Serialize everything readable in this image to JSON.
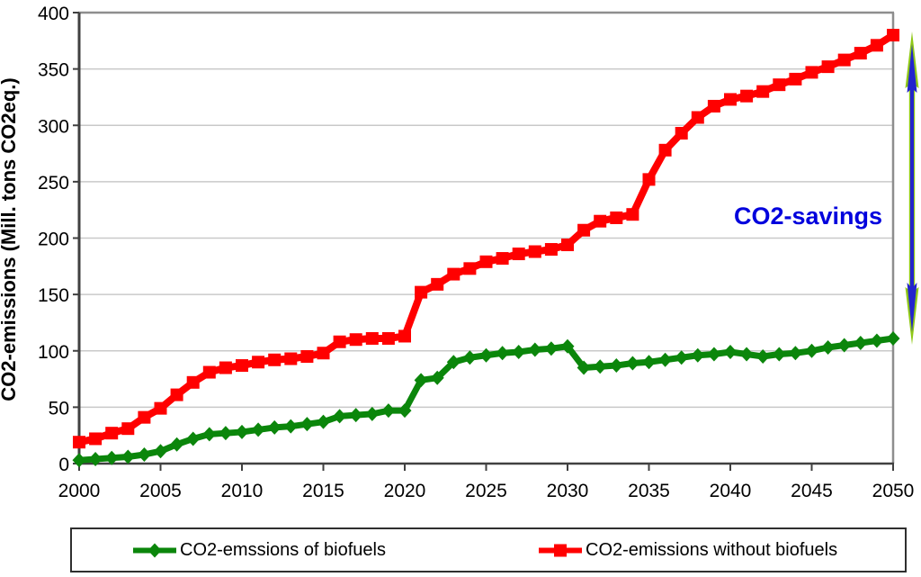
{
  "chart_data": {
    "type": "line",
    "title": "",
    "xlabel": "",
    "ylabel": "CO2-emissions (Mill. tons CO2eq.)",
    "xlim": [
      2000,
      2050
    ],
    "ylim": [
      0,
      400
    ],
    "x_ticks": [
      2000,
      2005,
      2010,
      2015,
      2020,
      2025,
      2030,
      2035,
      2040,
      2045,
      2050
    ],
    "y_ticks": [
      0,
      50,
      100,
      150,
      200,
      250,
      300,
      350,
      400
    ],
    "grid": "horizontal",
    "legend_position": "bottom",
    "x": [
      2000,
      2001,
      2002,
      2003,
      2004,
      2005,
      2006,
      2007,
      2008,
      2009,
      2010,
      2011,
      2012,
      2013,
      2014,
      2015,
      2016,
      2017,
      2018,
      2019,
      2020,
      2021,
      2022,
      2023,
      2024,
      2025,
      2026,
      2027,
      2028,
      2029,
      2030,
      2031,
      2032,
      2033,
      2034,
      2035,
      2036,
      2037,
      2038,
      2039,
      2040,
      2041,
      2042,
      2043,
      2044,
      2045,
      2046,
      2047,
      2048,
      2049,
      2050
    ],
    "series": [
      {
        "id": "co2-biofuels",
        "name": "CO2-emssions of biofuels",
        "color": "#0B860B",
        "marker": "diamond",
        "values": [
          3,
          4,
          5,
          6,
          8,
          11,
          17,
          22,
          26,
          27,
          28,
          30,
          32,
          33,
          35,
          37,
          42,
          43,
          44,
          47,
          47,
          74,
          76,
          90,
          94,
          96,
          98,
          99,
          101,
          102,
          104,
          85,
          86,
          87,
          89,
          90,
          92,
          94,
          96,
          97,
          99,
          97,
          95,
          97,
          98,
          100,
          103,
          105,
          107,
          109,
          111
        ]
      },
      {
        "id": "co2-without-biofuels",
        "name": "CO2-emissions without biofuels",
        "color": "#FF0000",
        "marker": "square",
        "values": [
          19,
          22,
          27,
          31,
          41,
          49,
          61,
          72,
          81,
          85,
          87,
          90,
          92,
          93,
          95,
          98,
          108,
          110,
          111,
          111,
          113,
          152,
          159,
          168,
          173,
          179,
          182,
          186,
          188,
          190,
          194,
          207,
          215,
          218,
          221,
          252,
          278,
          293,
          307,
          317,
          323,
          326,
          330,
          336,
          341,
          347,
          352,
          358,
          364,
          371,
          380
        ]
      }
    ],
    "annotation": {
      "text": "CO2-savings",
      "color": "#0000DD"
    },
    "savings_arrow": {
      "meaning": "double-headed vertical arrow spanning the gap between the two series at 2050",
      "outline_color": "#8FC816",
      "fill_color": "#2424CC"
    }
  }
}
